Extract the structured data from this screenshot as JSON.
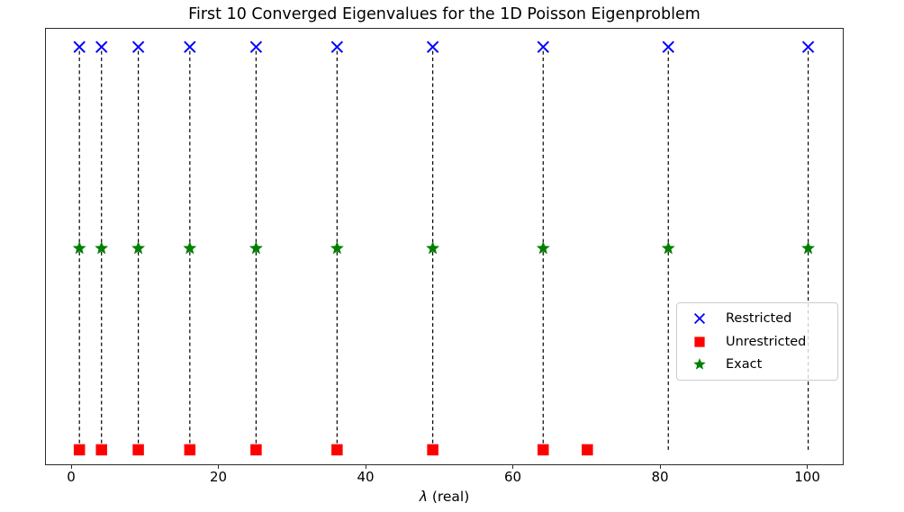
{
  "chart_data": {
    "type": "scatter",
    "title": "First 10 Converged Eigenvalues for the 1D Poisson Eigenproblem",
    "xlabel": "λ (real)",
    "ylabel": "",
    "x_ticks": [
      0,
      20,
      40,
      60,
      80,
      100
    ],
    "xlim": [
      -3.55,
      104.7
    ],
    "ylim": [
      -0.036,
      1.045
    ],
    "grid": false,
    "series": [
      {
        "name": "Restricted",
        "marker": "x",
        "color": "#0000ff",
        "row_y": 1.0,
        "x": [
          1,
          4,
          9,
          16,
          25,
          36,
          49,
          64,
          81,
          100
        ]
      },
      {
        "name": "Unrestricted",
        "marker": "square",
        "color": "#ff0000",
        "row_y": 0.0,
        "x": [
          1,
          4,
          9,
          16,
          25,
          36,
          49,
          64,
          70
        ]
      },
      {
        "name": "Exact",
        "marker": "star",
        "color": "#008000",
        "row_y": 0.5,
        "x": [
          1,
          4,
          9,
          16,
          25,
          36,
          49,
          64,
          81,
          100
        ]
      }
    ],
    "vlines": {
      "x": [
        1,
        4,
        9,
        16,
        25,
        36,
        49,
        64,
        81,
        100
      ],
      "color": "#000000",
      "style": "dashed",
      "y_from": 0.0,
      "y_to": 1.0
    },
    "legend": {
      "position": "center-right",
      "entries": [
        "Restricted",
        "Unrestricted",
        "Exact"
      ]
    }
  }
}
